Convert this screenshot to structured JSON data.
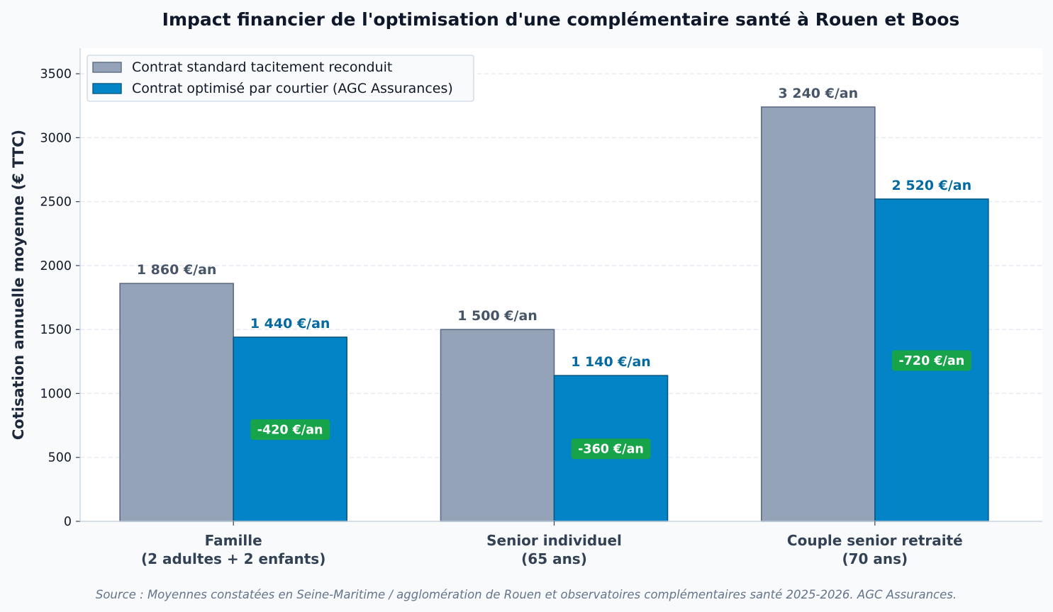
{
  "chart_data": {
    "type": "bar",
    "title": "Impact financier de l'optimisation d'une complémentaire santé à Rouen et Boos",
    "ylabel": "Cotisation annuelle moyenne (€ TTC)",
    "xlabel": "",
    "ylim": [
      0,
      3700
    ],
    "yticks": [
      0,
      500,
      1000,
      1500,
      2000,
      2500,
      3000,
      3500
    ],
    "grid": "horizontal-dashed",
    "legend_position": "top-left",
    "categories": [
      [
        "Famille",
        "(2 adultes + 2 enfants)"
      ],
      [
        "Senior individuel",
        "(65 ans)"
      ],
      [
        "Couple senior retraité",
        "(70 ans)"
      ]
    ],
    "series": [
      {
        "name": "Contrat standard tacitement reconduit",
        "color": "#94a3b8",
        "edge": "#5b6b82",
        "values": [
          1860,
          1500,
          3240
        ],
        "labels": [
          "1 860 €/an",
          "1 500 €/an",
          "3 240 €/an"
        ]
      },
      {
        "name": "Contrat optimisé par courtier (AGC Assurances)",
        "color": "#0284c7",
        "edge": "#075985",
        "values": [
          1440,
          1140,
          2520
        ],
        "labels": [
          "1 440 €/an",
          "1 140 €/an",
          "2 520 €/an"
        ]
      }
    ],
    "savings": {
      "color": "#16a34a",
      "labels": [
        "-420 €/an",
        "-360 €/an",
        "-720 €/an"
      ]
    },
    "source": "Source : Moyennes constatées en Seine-Maritime / agglomération de Rouen et observatoires complémentaires santé 2025-2026. AGC Assurances."
  }
}
